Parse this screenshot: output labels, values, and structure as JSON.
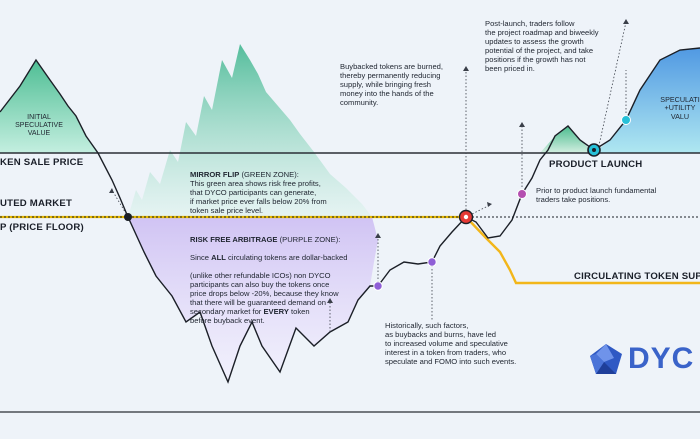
{
  "labels": {
    "token_sale_price": "KEN SALE PRICE",
    "diluted_market_line1": "UTED MARKET",
    "diluted_market_line2": "P (PRICE FLOOR)",
    "product_launch": "PRODUCT LAUNCH",
    "circulating_supply": "CIRCULATING TOKEN SUPP",
    "initial_speculative": "INITIAL\nSPECULATIVE\nVALUE",
    "speculative_utility": "SPECULATI\n+UTILITY\nVALU"
  },
  "notes": {
    "post_launch": "Post-launch, traders follow\nthe project roadmap and biweekly\nupdates to assess the growth\npotential of the project, and take\npositions if the growth has not\nbeen priced in.",
    "buyback": "Buybacked tokens are burned,\nthereby permanently reducing\nsupply, while bringing fresh\nmoney into the hands of the\ncommunity.",
    "mirror_flip_title": "MIRROR FLIP",
    "mirror_flip_zone": " (GREEN ZONE):",
    "mirror_flip_body": "This green area shows risk free profits,\nthat DYCO participants can generate,\nif market price ever falls below 20% from\ntoken sale price level.",
    "risk_free_title": "RISK FREE ARBITRAGE",
    "risk_free_zone": " (PURPLE ZONE):",
    "risk_free_l1a": "Since ",
    "risk_free_all": "ALL",
    "risk_free_l1b": " circulating tokens are dollar-backed",
    "risk_free_mid": "(unlike other refundable ICOs) non DYCO\nparticipants can also buy the tokens once\nprice drops below -20%, because they know\nthat there will be guaranteed demand on\nsecondary market for ",
    "risk_free_every": "EVERY",
    "risk_free_end": " token\n      before buyback event.",
    "pre_launch": "Prior to product launch fundamental\ntraders take positions.",
    "historically": "Historically, such factors,\nas buybacks and burns, have led\nto increased volume and speculative\ninterest in a token from traders, who\nspeculate and FOMO into such events."
  },
  "logo": {
    "text": "DYC",
    "color": "#3a63c9"
  },
  "colors": {
    "green_zone": "#5cc9a0",
    "purple_zone": "#b9a6ec",
    "floor_line": "#e6b800",
    "supply_line": "#f2b61a",
    "price_line": "#1b1f27",
    "marker_purple": "#b44fb0",
    "marker_red": "#e53935",
    "marker_cyan": "#27c0d8"
  }
}
